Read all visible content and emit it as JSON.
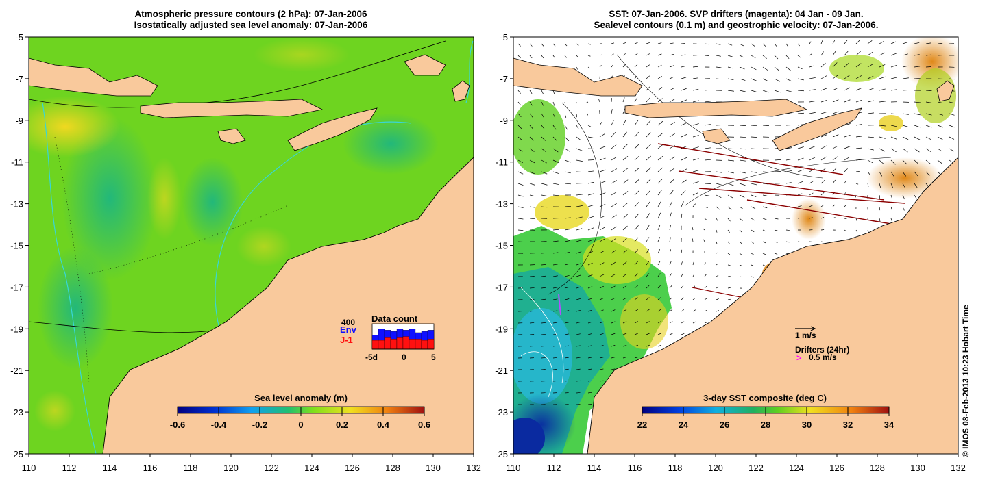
{
  "left_panel": {
    "title_line1": "Atmospheric pressure contours (2 hPa): 07-Jan-2006",
    "title_line2": "Isostatically adjusted sea level anomaly: 07-Jan-2006",
    "colorbar_label": "Sea level anomaly (m)",
    "colorbar_ticks": [
      "-0.6",
      "-0.4",
      "-0.2",
      "0",
      "0.2",
      "0.4",
      "0.6"
    ],
    "inset": {
      "title": "Data count",
      "max_label": "400",
      "env_label": "Env",
      "j1_label": "J-1",
      "x_left": "-5d",
      "x_mid": "0",
      "x_right": "5",
      "env_color": "#1010ff",
      "j1_color": "#ff1010",
      "env_counts": [
        0.55,
        0.8,
        0.75,
        0.7,
        0.8,
        0.75,
        0.8,
        0.65,
        0.7,
        0.75
      ],
      "j1_counts": [
        0.35,
        0.35,
        0.45,
        0.4,
        0.45,
        0.5,
        0.4,
        0.4,
        0.35,
        0.4
      ]
    }
  },
  "right_panel": {
    "title_line1": "SST: 07-Jan-2006. SVP drifters (magenta): 04 Jan - 09 Jan.",
    "title_line2": "Sealevel contours (0.1 m) and geostrophic velocity: 07-Jan-2006.",
    "colorbar_label": "3-day SST composite (deg C)",
    "colorbar_ticks": [
      "22",
      "24",
      "26",
      "28",
      "30",
      "32",
      "34"
    ],
    "scale_arrow_label": "1 m/s",
    "drifters_label": "Drifters (24hr)",
    "drifter_marker": ">",
    "drifter_speed_label": "0.5 m/s",
    "drifter_color": "#ff00ff"
  },
  "axes": {
    "lat_ticks": [
      "-5",
      "-7",
      "-9",
      "-11",
      "-13",
      "-15",
      "-17",
      "-19",
      "-21",
      "-23",
      "-25"
    ],
    "lon_ticks": [
      "110",
      "112",
      "114",
      "116",
      "118",
      "120",
      "122",
      "124",
      "126",
      "128",
      "130",
      "132"
    ]
  },
  "colors": {
    "land": "#f9c99c",
    "ocean_green": "#7ee01c",
    "coast_cyan": "#39d6d6"
  },
  "credit": "© IMOS 08-Feb-2013 10:23 Hobart Time"
}
